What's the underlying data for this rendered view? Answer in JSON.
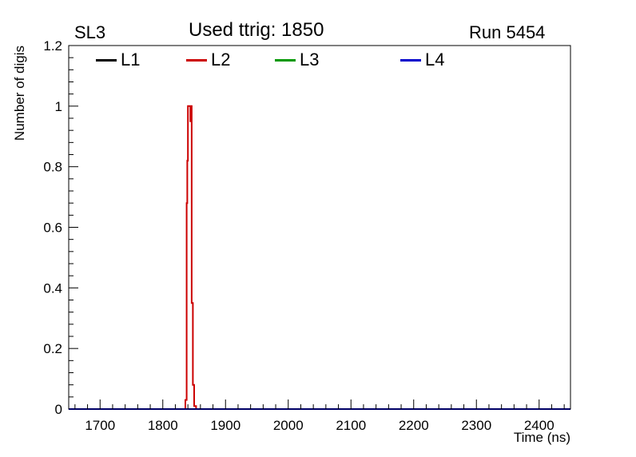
{
  "header": {
    "pad_label": "SL3",
    "run_label": "Run 5454"
  },
  "chart_data": {
    "type": "line",
    "title": "Used ttrig: 1850",
    "xlabel": "Time (ns)",
    "ylabel": "Number of digis",
    "xlim": [
      1650,
      2450
    ],
    "ylim": [
      0,
      1.2
    ],
    "x_ticks": [
      1700,
      1800,
      1900,
      2000,
      2100,
      2200,
      2300,
      2400
    ],
    "x_tick_labels": [
      "1700",
      "1800",
      "1900",
      "2000",
      "2100",
      "2200",
      "2300",
      "2400"
    ],
    "x_minor_step": 20,
    "y_ticks": [
      0,
      0.2,
      0.4,
      0.6,
      0.8,
      1,
      1.2
    ],
    "y_tick_labels": [
      "0",
      "0.2",
      "0.4",
      "0.6",
      "0.8",
      "1",
      "1.2"
    ],
    "y_minor_step": 0.04,
    "grid": false,
    "legend": {
      "position": "top-inside-horizontal",
      "entries": [
        {
          "label": "L1",
          "color": "#000000"
        },
        {
          "label": "L2",
          "color": "#cc0000"
        },
        {
          "label": "L3",
          "color": "#009900"
        },
        {
          "label": "L4",
          "color": "#0000cc"
        }
      ]
    },
    "series": [
      {
        "name": "L1",
        "color": "#000000",
        "width": 1,
        "points": [
          [
            1650,
            0
          ],
          [
            2450,
            0
          ]
        ]
      },
      {
        "name": "L2",
        "color": "#cc0000",
        "width": 2,
        "points": [
          [
            1650,
            0
          ],
          [
            1836,
            0
          ],
          [
            1836,
            0.03
          ],
          [
            1838,
            0.03
          ],
          [
            1838,
            0.68
          ],
          [
            1839,
            0.68
          ],
          [
            1839,
            0.82
          ],
          [
            1840,
            0.82
          ],
          [
            1840,
            1.0
          ],
          [
            1844,
            1.0
          ],
          [
            1844,
            0.95
          ],
          [
            1845,
            0.95
          ],
          [
            1845,
            1.0
          ],
          [
            1846,
            1.0
          ],
          [
            1846,
            0.35
          ],
          [
            1848,
            0.35
          ],
          [
            1848,
            0.08
          ],
          [
            1850,
            0.08
          ],
          [
            1850,
            0.01
          ],
          [
            1853,
            0.01
          ],
          [
            1853,
            0
          ],
          [
            2450,
            0
          ]
        ]
      },
      {
        "name": "L3",
        "color": "#009900",
        "width": 1,
        "points": [
          [
            1650,
            0
          ],
          [
            2450,
            0
          ]
        ]
      },
      {
        "name": "L4",
        "color": "#0000cc",
        "width": 2,
        "points": [
          [
            1650,
            0
          ],
          [
            2450,
            0
          ]
        ]
      }
    ]
  }
}
